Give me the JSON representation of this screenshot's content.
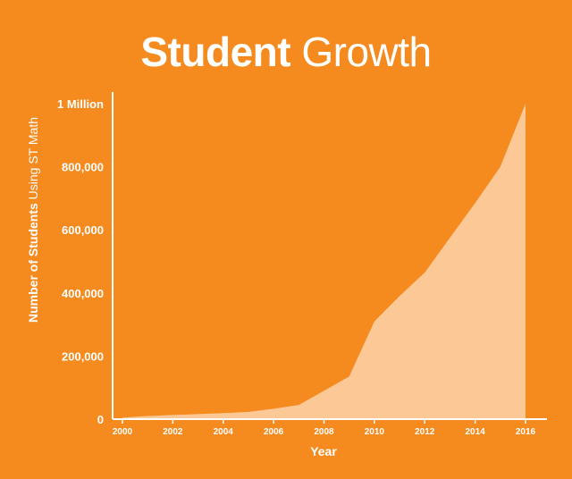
{
  "title": {
    "bold": "Student",
    "light": "Growth"
  },
  "colors": {
    "background": "#F58A1F",
    "area_fill": "#FCC896",
    "axis": "#FFFFFF",
    "text": "#FFFFFF"
  },
  "chart_data": {
    "type": "area",
    "title": "Student Growth",
    "xlabel": "Year",
    "ylabel_bold": "Number of Students",
    "ylabel_light": "Using ST Math",
    "x": [
      2000,
      2001,
      2002,
      2003,
      2004,
      2005,
      2006,
      2007,
      2008,
      2009,
      2010,
      2011,
      2012,
      2013,
      2014,
      2015,
      2016
    ],
    "values": [
      5000,
      10000,
      13000,
      16000,
      19000,
      23000,
      33000,
      45000,
      90000,
      135000,
      310000,
      390000,
      465000,
      575000,
      685000,
      800000,
      1000000
    ],
    "xlim": [
      2000,
      2016
    ],
    "ylim": [
      0,
      1000000
    ],
    "x_ticks": [
      2000,
      2002,
      2004,
      2006,
      2008,
      2010,
      2012,
      2014,
      2016
    ],
    "y_ticks": [
      {
        "value": 0,
        "label": "0"
      },
      {
        "value": 200000,
        "label": "200,000"
      },
      {
        "value": 400000,
        "label": "400,000"
      },
      {
        "value": 600000,
        "label": "600,000"
      },
      {
        "value": 800000,
        "label": "800,000"
      },
      {
        "value": 1000000,
        "label": "1 Million"
      }
    ],
    "grid": false,
    "legend": "none"
  }
}
